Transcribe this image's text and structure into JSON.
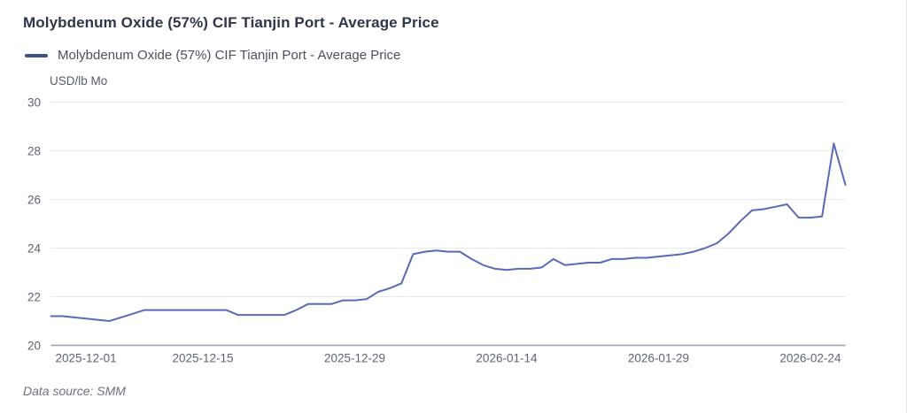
{
  "header": {
    "title": "Molybdenum Oxide (57%) CIF Tianjin Port - Average Price"
  },
  "legend": {
    "label": "Molybdenum Oxide (57%) CIF Tianjin Port - Average Price"
  },
  "axes": {
    "unit_label": "USD/lb Mo"
  },
  "footer": {
    "source_note": "Data source:  SMM"
  },
  "colors": {
    "line": "#5a6ab4",
    "legend_marker": "#404f85",
    "title_text": "#2e3649",
    "axis_text": "#5d6470",
    "grid_line": "#e9eaec",
    "axis_line": "#969da9",
    "background": "#ffffff"
  },
  "chart_data": {
    "type": "line",
    "title": "Molybdenum Oxide (57%) CIF Tianjin Port - Average Price",
    "series_name": "Molybdenum Oxide (57%) CIF Tianjin Port - Average Price",
    "ylabel": "USD/lb Mo",
    "ylim": [
      20,
      30
    ],
    "y_ticks": [
      20,
      22,
      24,
      26,
      28,
      30
    ],
    "grid": true,
    "legend_position": "top-left",
    "x_tick_labels": [
      "2025-12-01",
      "2025-12-15",
      "2025-12-29",
      "2026-01-14",
      "2026-01-29",
      "2026-02-24"
    ],
    "x_tick_indices": [
      3,
      13,
      26,
      39,
      52,
      65
    ],
    "values": [
      21.2,
      21.2,
      21.15,
      21.1,
      21.05,
      21.0,
      21.15,
      21.3,
      21.45,
      21.45,
      21.45,
      21.45,
      21.45,
      21.45,
      21.45,
      21.45,
      21.25,
      21.25,
      21.25,
      21.25,
      21.25,
      21.45,
      21.7,
      21.7,
      21.7,
      21.85,
      21.85,
      21.9,
      22.2,
      22.35,
      22.55,
      23.75,
      23.85,
      23.9,
      23.85,
      23.85,
      23.55,
      23.3,
      23.15,
      23.1,
      23.15,
      23.15,
      23.2,
      23.55,
      23.3,
      23.35,
      23.4,
      23.4,
      23.55,
      23.55,
      23.6,
      23.6,
      23.65,
      23.7,
      23.75,
      23.85,
      24.0,
      24.2,
      24.6,
      25.1,
      25.55,
      25.6,
      25.7,
      25.8,
      25.25,
      25.25,
      25.3,
      28.3,
      26.6
    ]
  }
}
